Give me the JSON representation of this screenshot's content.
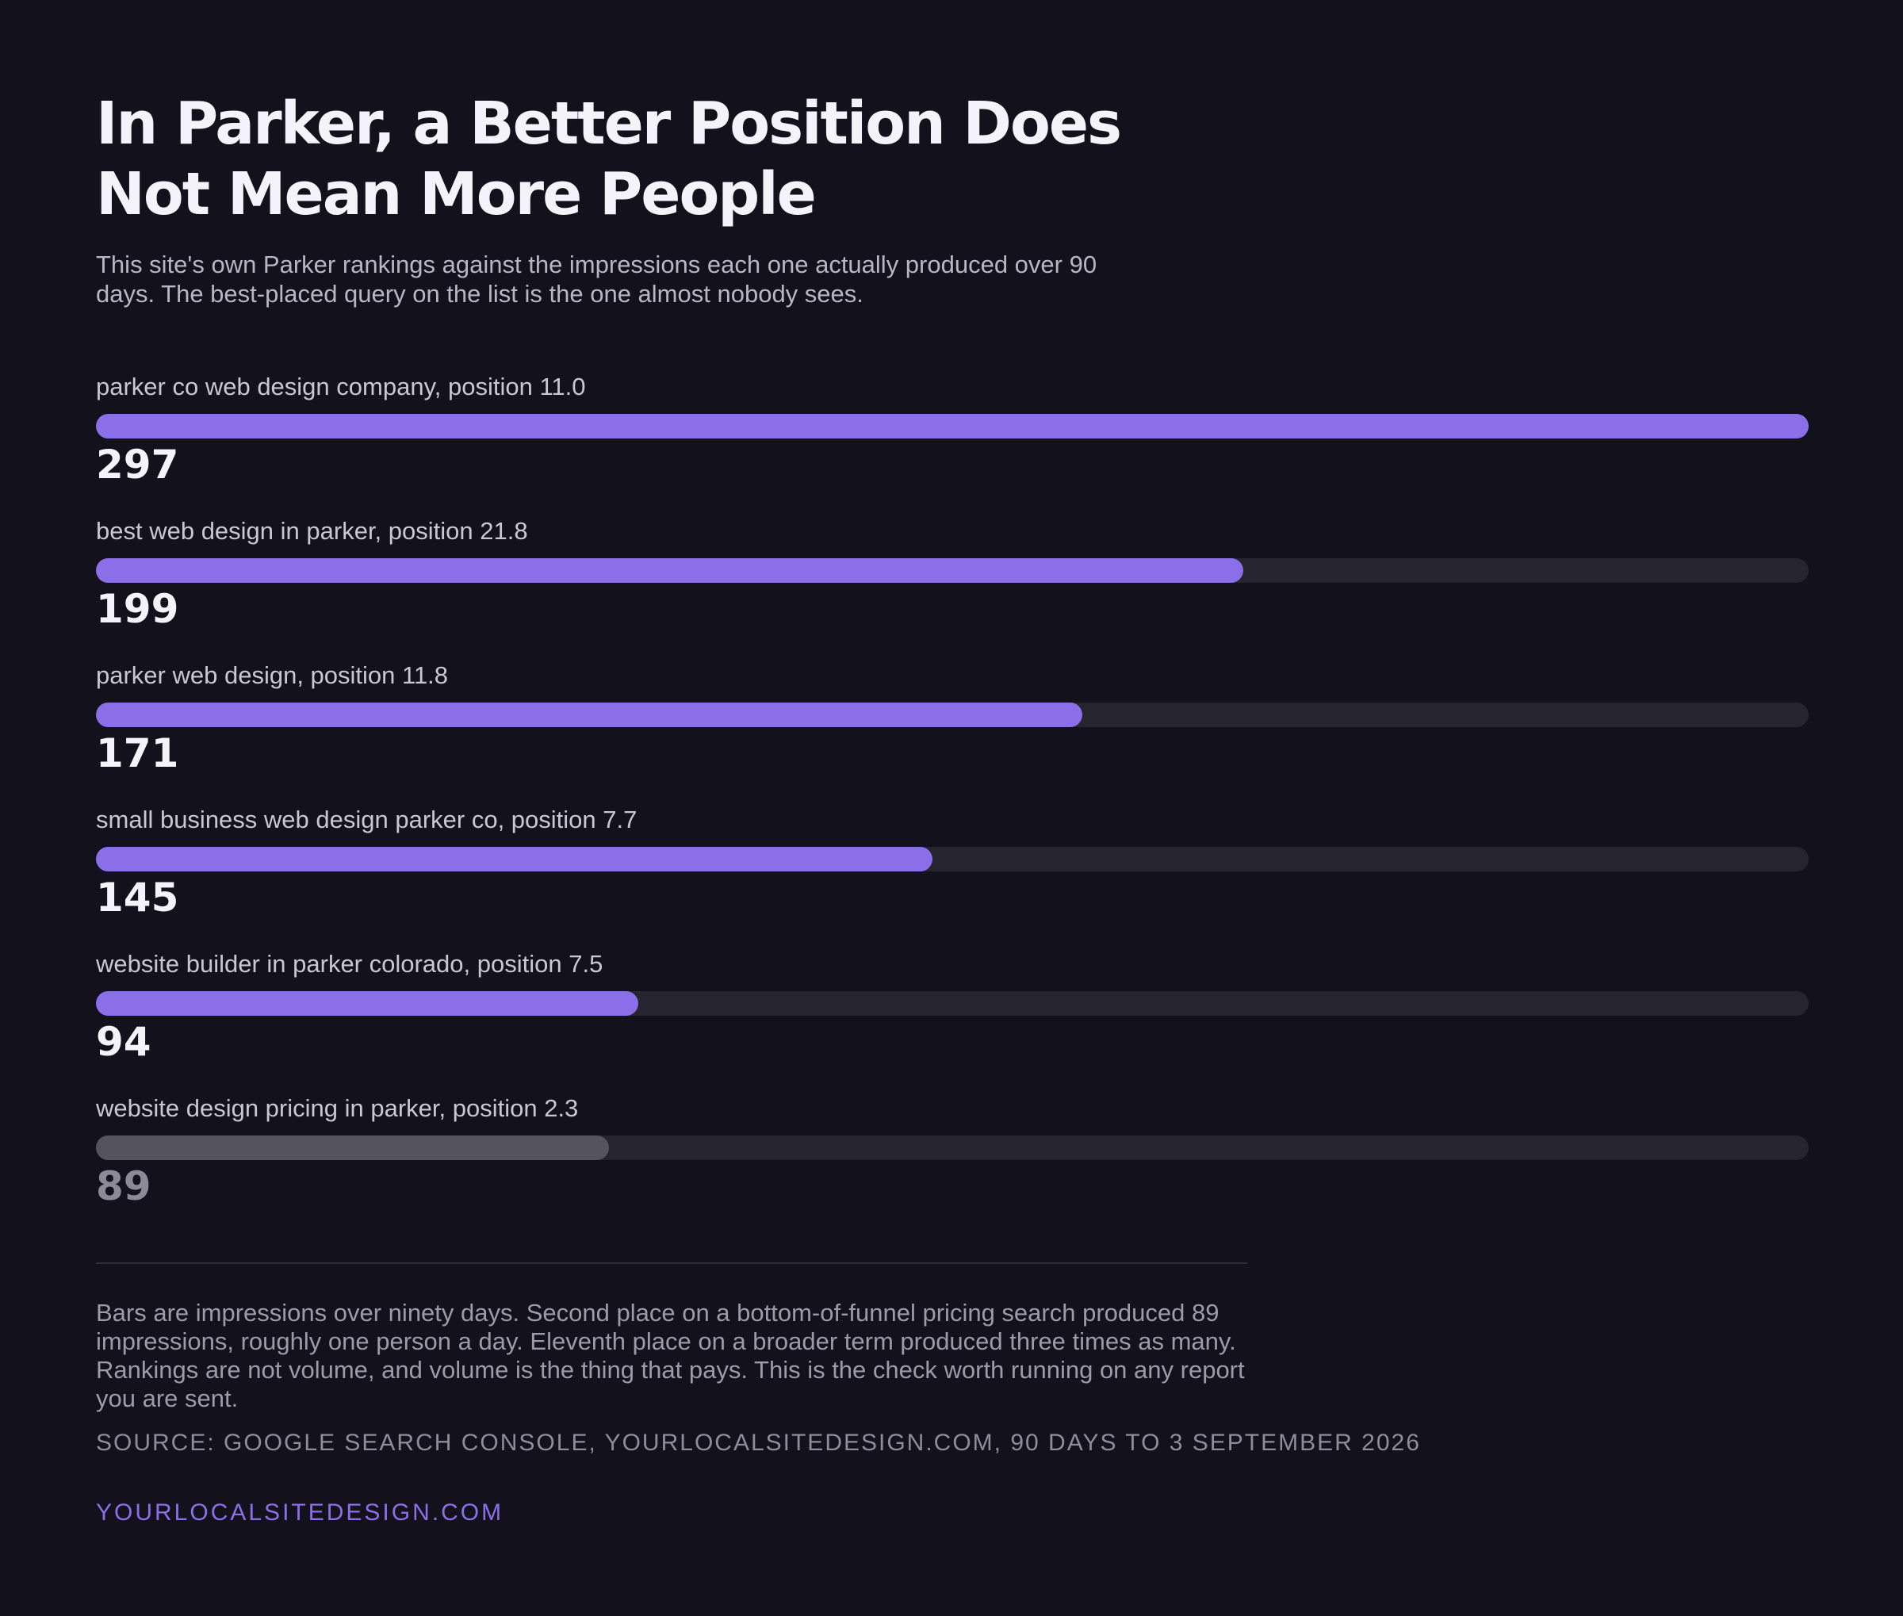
{
  "header": {
    "title": "In Parker, a Better Position Does Not Mean More People",
    "subtitle": "This site's own Parker rankings against the impressions each one actually produced over 90 days. The best-placed query on the list is the one almost nobody sees."
  },
  "chart_data": {
    "type": "bar",
    "orientation": "horizontal",
    "categories": [
      "parker co web design company, position 11.0",
      "best web design in parker, position 21.8",
      "parker web design, position 11.8",
      "small business web design parker co, position 7.7",
      "website builder in parker colorado, position 7.5",
      "website design pricing in parker, position 2.3"
    ],
    "values": [
      297,
      199,
      171,
      145,
      94,
      89
    ],
    "value_labels": [
      "297",
      "199",
      "171",
      "145",
      "94",
      "89"
    ],
    "xlim": [
      0,
      297
    ],
    "grid": false,
    "colors": {
      "bar": "#8b6fe8",
      "highlight_bar": "#55535d",
      "track": "#26242f",
      "background": "#13121c"
    },
    "highlighted_index": 5
  },
  "footer": {
    "note": "Bars are impressions over ninety days. Second place on a bottom-of-funnel pricing search produced 89 impressions, roughly one person a day. Eleventh place on a broader term produced three times as many. Rankings are not volume, and volume is the thing that pays. This is the check worth running on any report you are sent.",
    "source": "SOURCE: GOOGLE SEARCH CONSOLE, YOURLOCALSITEDESIGN.COM, 90 DAYS TO 3 SEPTEMBER 2026",
    "brand": "YOURLOCALSITEDESIGN.COM"
  }
}
